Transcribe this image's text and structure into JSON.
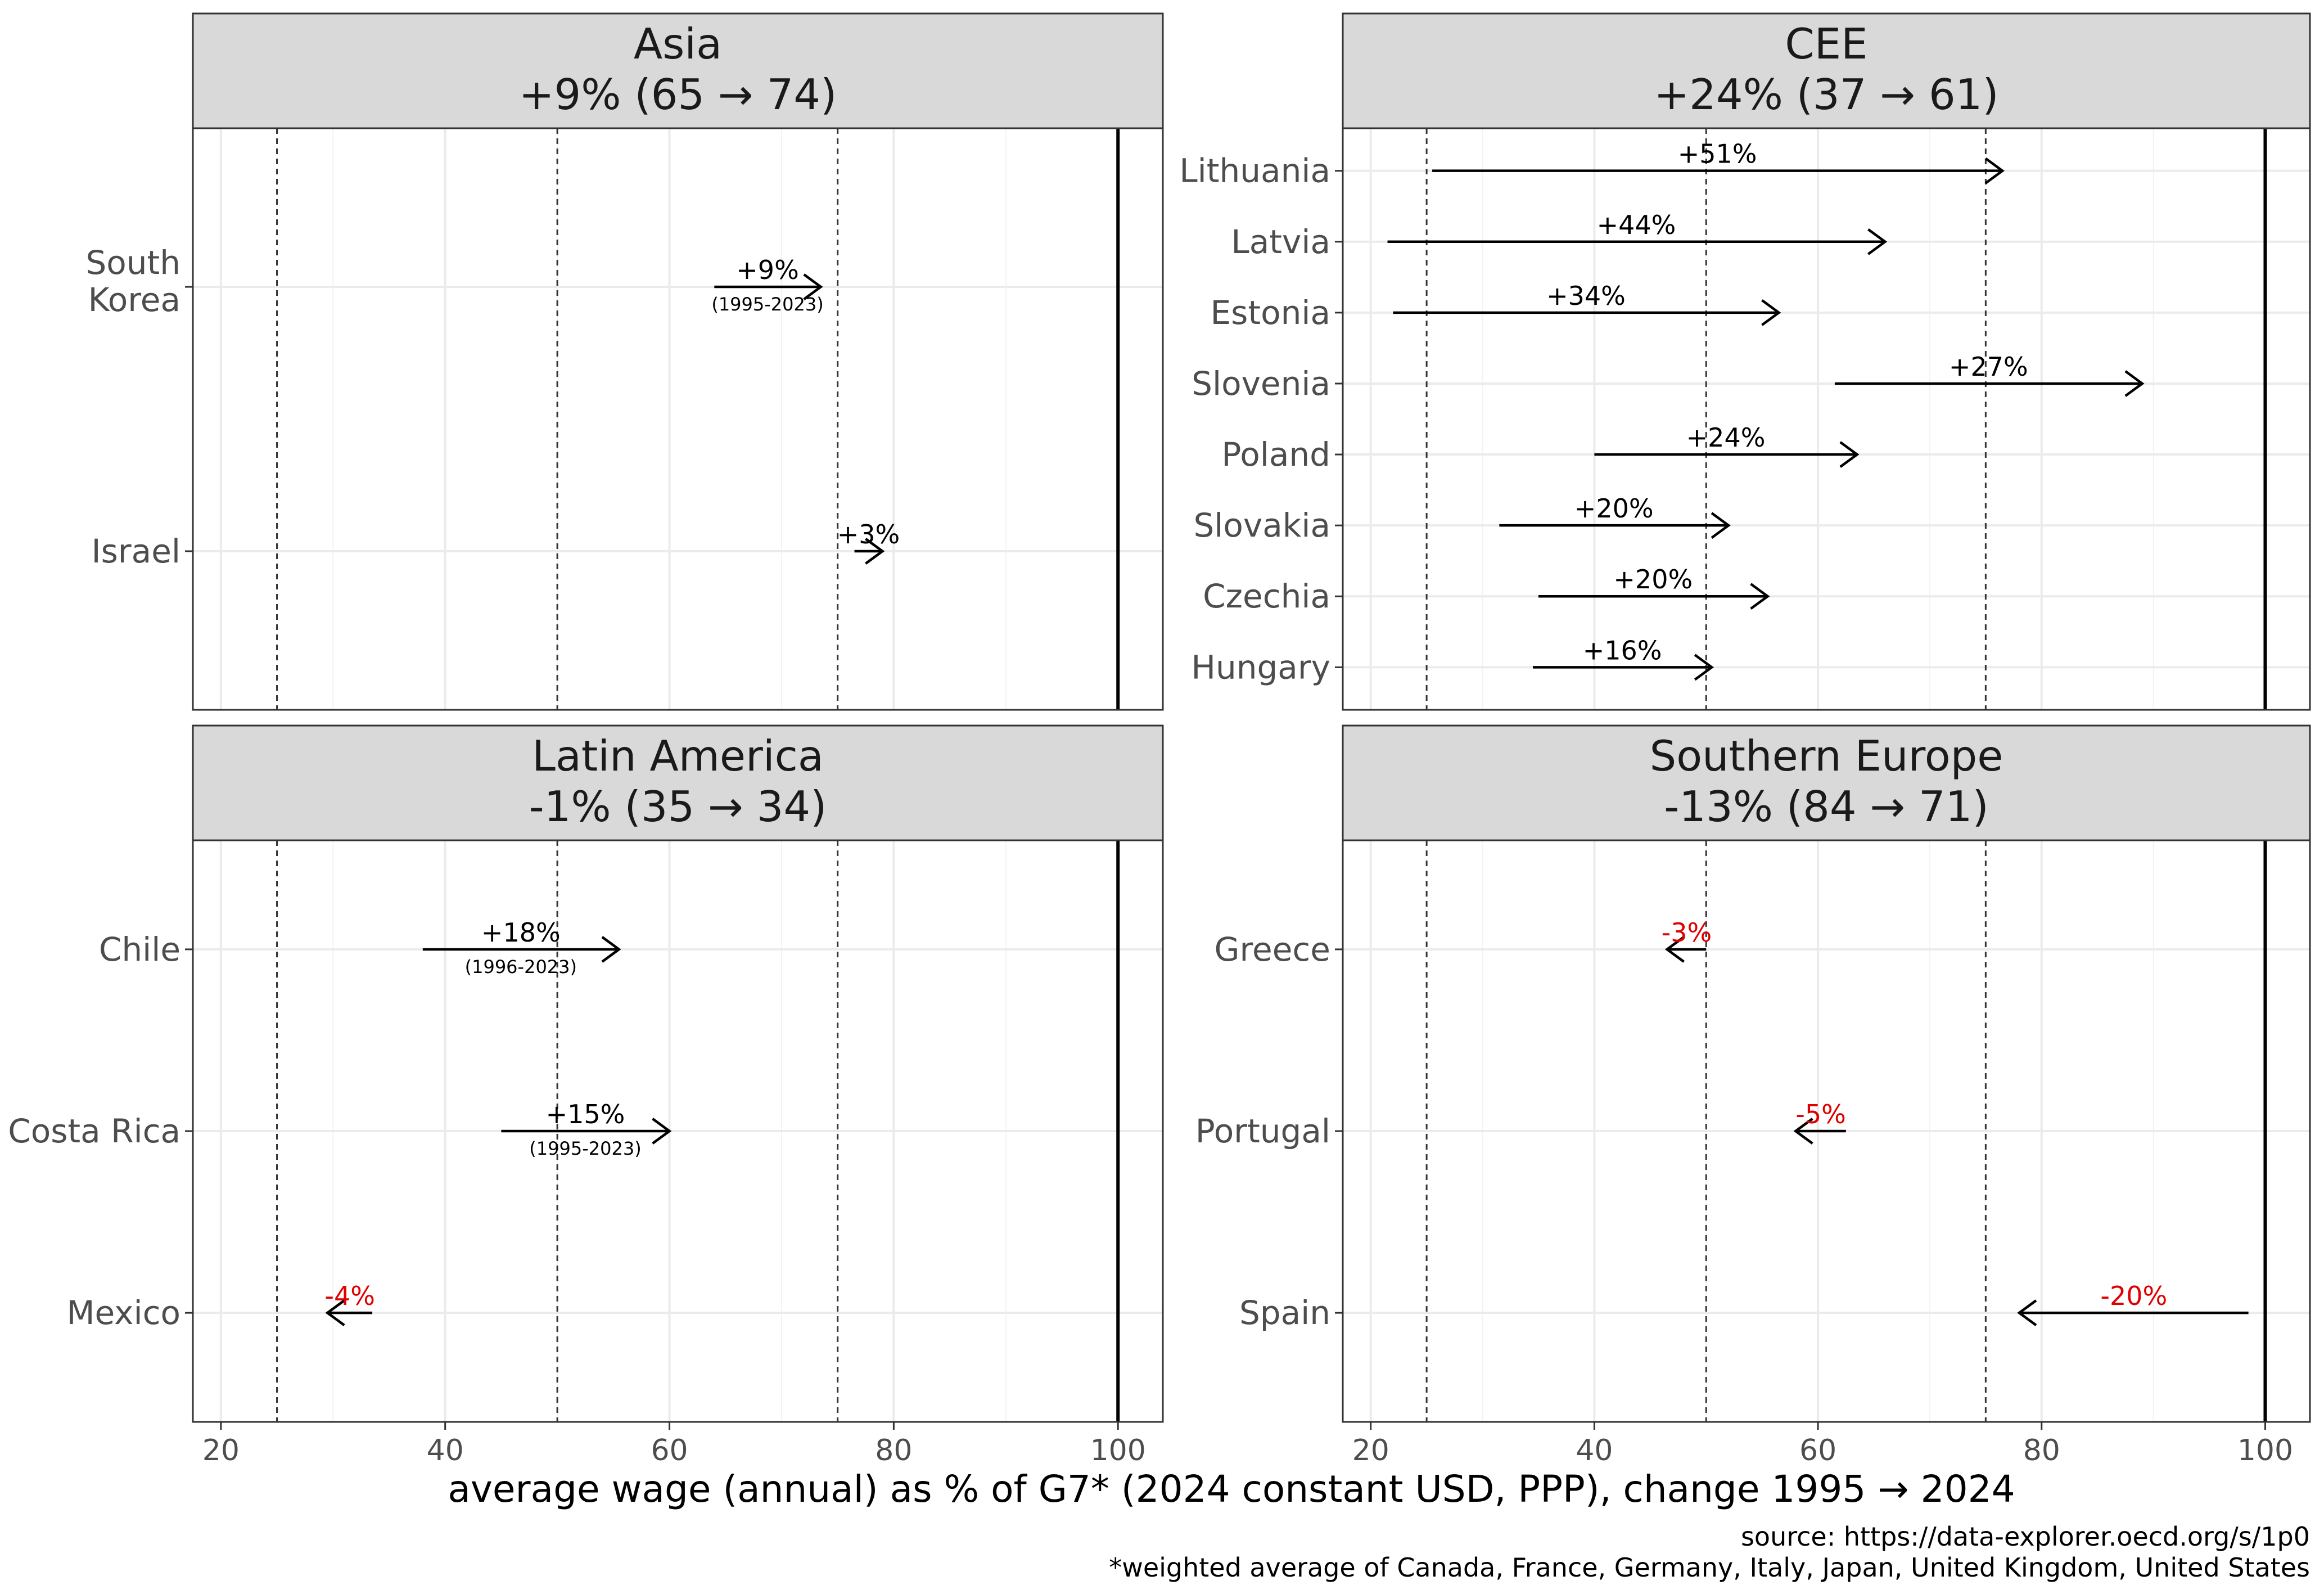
{
  "chart_data": {
    "type": "arrow-dot-facet",
    "x_axis": {
      "label": "average wage (annual) as % of G7* (2024 constant USD, PPP), change 1995 → 2024",
      "ticks": [
        20,
        40,
        60,
        80,
        100
      ],
      "tick_labels": [
        "20",
        "40",
        "60",
        "80",
        "100"
      ],
      "range": [
        17.5,
        104
      ]
    },
    "reference_lines": {
      "dashed": [
        25,
        50,
        75
      ],
      "solid": [
        100
      ]
    },
    "colors": {
      "increase": "#000000",
      "decrease": "#e00000"
    },
    "caption": {
      "source": "source: https://data-explorer.oecd.org/s/1p0",
      "note": "*weighted average of Canada, France, Germany, Italy, Japan, United Kingdom, United States"
    },
    "panels": [
      {
        "id": "asia",
        "title": "Asia",
        "subtitle": "+9% (65 → 74)",
        "rows": [
          {
            "country": "South\nKorea",
            "from": 64,
            "to": 73.5,
            "label": "+9%",
            "period": "(1995-2023)"
          },
          {
            "country": "Israel",
            "from": 76.5,
            "to": 79,
            "label": "+3%",
            "period": ""
          }
        ]
      },
      {
        "id": "cee",
        "title": "CEE",
        "subtitle": "+24% (37 → 61)",
        "rows": [
          {
            "country": "Lithuania",
            "from": 25.5,
            "to": 76.5,
            "label": "+51%",
            "period": ""
          },
          {
            "country": "Latvia",
            "from": 21.5,
            "to": 66,
            "label": "+44%",
            "period": ""
          },
          {
            "country": "Estonia",
            "from": 22,
            "to": 56.5,
            "label": "+34%",
            "period": ""
          },
          {
            "country": "Slovenia",
            "from": 61.5,
            "to": 89,
            "label": "+27%",
            "period": ""
          },
          {
            "country": "Poland",
            "from": 40,
            "to": 63.5,
            "label": "+24%",
            "period": ""
          },
          {
            "country": "Slovakia",
            "from": 31.5,
            "to": 52,
            "label": "+20%",
            "period": ""
          },
          {
            "country": "Czechia",
            "from": 35,
            "to": 55.5,
            "label": "+20%",
            "period": ""
          },
          {
            "country": "Hungary",
            "from": 34.5,
            "to": 50.5,
            "label": "+16%",
            "period": ""
          }
        ]
      },
      {
        "id": "latam",
        "title": "Latin America",
        "subtitle": "-1% (35 → 34)",
        "rows": [
          {
            "country": "Chile",
            "from": 38,
            "to": 55.5,
            "label": "+18%",
            "period": "(1996-2023)"
          },
          {
            "country": "Costa Rica",
            "from": 45,
            "to": 60,
            "label": "+15%",
            "period": "(1995-2023)"
          },
          {
            "country": "Mexico",
            "from": 33.5,
            "to": 29.5,
            "label": "-4%",
            "period": ""
          }
        ]
      },
      {
        "id": "southern",
        "title": "Southern Europe",
        "subtitle": "-13% (84 → 71)",
        "rows": [
          {
            "country": "Greece",
            "from": 50,
            "to": 46.5,
            "label": "-3%",
            "period": ""
          },
          {
            "country": "Portugal",
            "from": 62.5,
            "to": 58,
            "label": "-5%",
            "period": ""
          },
          {
            "country": "Spain",
            "from": 98.5,
            "to": 78,
            "label": "-20%",
            "period": ""
          }
        ]
      }
    ]
  }
}
